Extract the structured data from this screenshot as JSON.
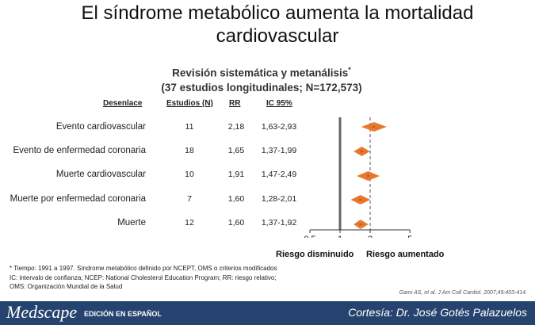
{
  "title": "El síndrome metabólico aumenta la mortalidad cardiovascular",
  "subtitle_line1": "Revisión sistemática y metanálisis",
  "subtitle_sup": "*",
  "subtitle_line2": "(37 estudios longitudinales; N=172,573)",
  "headers": {
    "outcome": "Desenlace",
    "studies": "Estudios (N)",
    "rr": "RR",
    "ci": "IC 95%"
  },
  "risk_labels": {
    "left": "Riesgo disminuido",
    "right": "Riesgo aumentado"
  },
  "footnotes": [
    "* Tiempo: 1991 a 1997. Síndrome metabólico definido por NCEPT, OMS o criterios modificados",
    "IC: intervalo de confianza; NCEP: National Cholesterol Education Program; RR: riesgo relativo;",
    "OMS: Organización Mundial de la Salud"
  ],
  "citation": "Gami AS, et al. J Am Coll Cardiol. 2007;49:403-414.",
  "footer": {
    "brand": "Medscape",
    "edition": "EDICIÓN EN ESPAÑOL",
    "courtesy": "Cortesía: Dr. José Gotés Palazuelos"
  },
  "colors": {
    "marker": "#e8772e",
    "reference_line": "#666666",
    "footer_bg": "#25436e"
  },
  "chart_data": {
    "type": "forest",
    "xscale": "log",
    "xticks": [
      0.5,
      1,
      2,
      5
    ],
    "xtick_labels": [
      "0,5",
      "1",
      "2",
      "5"
    ],
    "xlim": [
      0.5,
      5
    ],
    "reference_value": 1,
    "rows": [
      {
        "outcome": "Evento cardiovascular",
        "studies": "11",
        "rr_label": "2,18",
        "ci_label": "1,63-2,93",
        "rr": 2.18,
        "ci_low": 1.63,
        "ci_high": 2.93
      },
      {
        "outcome": "Evento de enfermedad coronaria",
        "studies": "18",
        "rr_label": "1,65",
        "ci_label": "1,37-1,99",
        "rr": 1.65,
        "ci_low": 1.37,
        "ci_high": 1.99
      },
      {
        "outcome": "Muerte cardiovascular",
        "studies": "10",
        "rr_label": "1,91",
        "ci_label": "1,47-2,49",
        "rr": 1.91,
        "ci_low": 1.47,
        "ci_high": 2.49
      },
      {
        "outcome": "Muerte por enfermedad coronaria",
        "studies": "7",
        "rr_label": "1,60",
        "ci_label": "1,28-2,01",
        "rr": 1.6,
        "ci_low": 1.28,
        "ci_high": 2.01
      },
      {
        "outcome": "Muerte",
        "studies": "12",
        "rr_label": "1,60",
        "ci_label": "1,37-1,92",
        "rr": 1.6,
        "ci_low": 1.37,
        "ci_high": 1.92
      }
    ]
  }
}
